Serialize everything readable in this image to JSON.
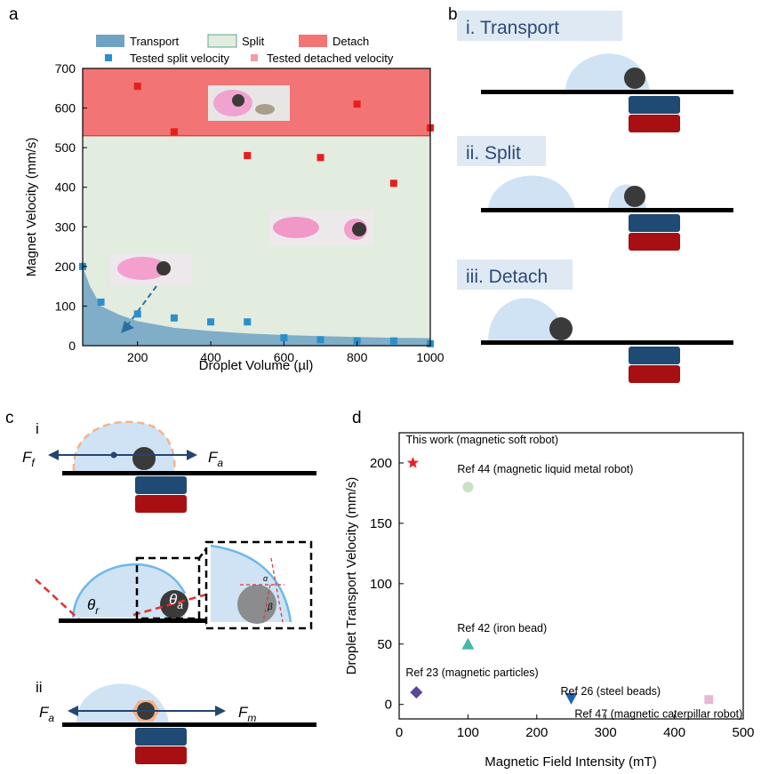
{
  "panels": {
    "a": "a",
    "b": "b",
    "c": "c",
    "d": "d"
  },
  "colors": {
    "transport": "#6fa3c4",
    "split": "#e2ecdf",
    "detach": "#f27474",
    "split_points": "#2b8fcb",
    "detach_points": "#e81e1e",
    "droplet": "#cfe3f5",
    "magnet_blue": "#1f4a73",
    "magnet_red": "#a80f12",
    "ball": "#3a3a3a"
  },
  "chart_data": [
    {
      "type": "area",
      "panel": "a",
      "xlabel": "Droplet Volume (µl)",
      "ylabel": "Magnet Velocity (mm/s)",
      "xlim": [
        50,
        1000
      ],
      "ylim": [
        0,
        700
      ],
      "x_ticks": [
        200,
        400,
        600,
        800,
        1000
      ],
      "y_ticks": [
        0,
        100,
        200,
        300,
        400,
        500,
        600,
        700
      ],
      "regions": [
        {
          "name": "Transport",
          "curve_x": [
            50,
            70,
            100,
            150,
            200,
            300,
            400,
            500,
            600,
            700,
            800,
            900,
            1000
          ],
          "curve_y": [
            200,
            150,
            100,
            78,
            62,
            45,
            37,
            31,
            27,
            24,
            22,
            20,
            19
          ]
        },
        {
          "name": "Split",
          "lower": "transport",
          "upper": 530
        },
        {
          "name": "Detach",
          "lower": 530,
          "upper": 700
        }
      ],
      "series": [
        {
          "name": "Tested split velocity",
          "marker": "square",
          "x": [
            50,
            100,
            200,
            300,
            400,
            500,
            600,
            700,
            800,
            900,
            1000
          ],
          "y": [
            200,
            110,
            80,
            70,
            60,
            60,
            20,
            15,
            12,
            12,
            5
          ]
        },
        {
          "name": "Tested detached velocity",
          "marker": "square",
          "x": [
            200,
            300,
            500,
            700,
            800,
            900,
            1000
          ],
          "y": [
            655,
            540,
            480,
            475,
            610,
            410,
            550
          ]
        }
      ],
      "legend": [
        "Transport",
        "Split",
        "Detach",
        "Tested split velocity",
        "Tested detached velocity"
      ],
      "legend_placement": "top"
    },
    {
      "type": "scatter",
      "panel": "d",
      "xlabel": "Magnetic Field Intensity (mT)",
      "ylabel": "Droplet Transport Velocity (mm/s)",
      "xlim": [
        0,
        500
      ],
      "ylim": [
        -12,
        225
      ],
      "x_ticks": [
        0,
        100,
        200,
        300,
        400,
        500
      ],
      "y_ticks": [
        0,
        50,
        100,
        150,
        200
      ],
      "points": [
        {
          "label": "This work (magnetic soft robot)",
          "x": 20,
          "y": 200,
          "marker": "star",
          "color": "#e8202a"
        },
        {
          "label": "Ref 44 (magnetic liquid metal robot)",
          "x": 100,
          "y": 180,
          "marker": "circle",
          "color": "#c9e2c3"
        },
        {
          "label": "Ref 42 (iron bead)",
          "x": 100,
          "y": 50,
          "marker": "triangle",
          "color": "#49b5a9"
        },
        {
          "label": "Ref 23 (magnetic particles)",
          "x": 25,
          "y": 10,
          "marker": "diamond",
          "color": "#5c4696"
        },
        {
          "label": "Ref 26 (steel beads)",
          "x": 250,
          "y": 5,
          "marker": "triangle-down",
          "color": "#1e64b4"
        },
        {
          "label": "Ref 47 (magnetic caterpillar robot)",
          "x": 450,
          "y": 4,
          "marker": "square",
          "color": "#e6b8d4"
        }
      ]
    }
  ],
  "panel_b": {
    "rows": [
      {
        "label": "i. Transport"
      },
      {
        "label": "ii. Split"
      },
      {
        "label": "iii. Detach"
      }
    ]
  },
  "panel_c": {
    "i_label": "i",
    "ii_label": "ii",
    "force_friction": "F",
    "force_friction_sub": "f",
    "force_adhesion": "F",
    "force_adhesion_sub": "a",
    "force_magnetic": "F",
    "force_magnetic_sub": "m",
    "theta_r": "θ",
    "theta_r_sub": "r",
    "theta_a": "θ",
    "theta_a_sub": "a",
    "alpha": "α",
    "beta": "β"
  }
}
